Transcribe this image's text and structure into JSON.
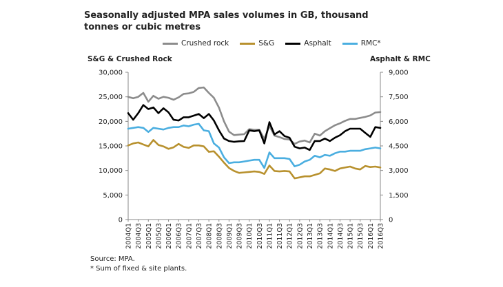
{
  "chart_data": {
    "type": "line",
    "title": "Seasonally adjusted MPA sales volumes in GB, thousand tonnes or cubic metres",
    "ylabel_left": "S&G & Crushed Rock",
    "ylabel_right": "Asphalt & RMC",
    "ylim_left": [
      0,
      30000
    ],
    "ylim_right": [
      0,
      9000
    ],
    "yticks_left": [
      "0",
      "5,000",
      "10,000",
      "15,000",
      "20,000",
      "25,000",
      "30,000"
    ],
    "yticks_right": [
      "0",
      "1,500",
      "3,000",
      "4,500",
      "6,000",
      "7,500",
      "9,000"
    ],
    "x_tick_labels": [
      "2004Q1",
      "2004Q3",
      "2005Q1",
      "2005Q3",
      "2006Q1",
      "2006Q3",
      "2007Q1",
      "2007Q3",
      "2008Q1",
      "2008Q3",
      "2009Q1",
      "2009Q3",
      "2010Q1",
      "2010Q3",
      "2011Q1",
      "2011Q3",
      "2012Q1",
      "2012Q3",
      "2013Q1",
      "2013Q3",
      "2014Q1",
      "2014Q3",
      "2015Q1",
      "2015Q3",
      "2016Q1",
      "2016Q3"
    ],
    "series": [
      {
        "name": "Crushed rock",
        "axis": "left",
        "color": "#8c8c8c",
        "values": [
          25000,
          24700,
          25000,
          25800,
          24000,
          25200,
          24600,
          25000,
          24800,
          24400,
          24900,
          25600,
          25700,
          26000,
          26800,
          26900,
          25800,
          24800,
          22800,
          20000,
          17900,
          17200,
          17300,
          17400,
          18400,
          18300,
          18300,
          16400,
          19100,
          17100,
          16800,
          16400,
          16300,
          15400,
          15900,
          16100,
          15700,
          17500,
          17100,
          18000,
          18600,
          19200,
          19600,
          20100,
          20500,
          20500,
          20700,
          20900,
          21200,
          21800,
          21900
        ]
      },
      {
        "name": "S&G",
        "axis": "left",
        "color": "#b8912e",
        "values": [
          15100,
          15500,
          15700,
          15300,
          14900,
          16200,
          15200,
          14900,
          14400,
          14700,
          15400,
          14800,
          14600,
          15100,
          15100,
          14900,
          13800,
          13900,
          12800,
          11600,
          10500,
          9900,
          9500,
          9600,
          9700,
          9800,
          9700,
          9300,
          11000,
          9900,
          9800,
          9900,
          9800,
          8400,
          8600,
          8800,
          8800,
          9100,
          9400,
          10400,
          10200,
          9900,
          10400,
          10600,
          10800,
          10400,
          10200,
          10900,
          10700,
          10800,
          10600
        ]
      },
      {
        "name": "Asphalt",
        "axis": "right",
        "color": "#000000",
        "values": [
          6500,
          6100,
          6500,
          7000,
          6750,
          6850,
          6500,
          6800,
          6550,
          6100,
          6050,
          6250,
          6250,
          6350,
          6450,
          6200,
          6450,
          6050,
          5450,
          4950,
          4800,
          4750,
          4780,
          4800,
          5450,
          5400,
          5450,
          4650,
          5950,
          5200,
          5400,
          5100,
          5000,
          4450,
          4350,
          4400,
          4250,
          4800,
          4800,
          4950,
          4800,
          5000,
          5150,
          5400,
          5550,
          5550,
          5550,
          5300,
          5050,
          5650,
          5600
        ]
      },
      {
        "name": "RMC*",
        "axis": "right",
        "color": "#4aaee0",
        "values": [
          5550,
          5600,
          5650,
          5600,
          5350,
          5600,
          5550,
          5500,
          5600,
          5650,
          5650,
          5750,
          5700,
          5800,
          5850,
          5450,
          5400,
          4650,
          4400,
          3800,
          3450,
          3500,
          3500,
          3550,
          3600,
          3650,
          3650,
          3150,
          4100,
          3750,
          3750,
          3750,
          3700,
          3250,
          3350,
          3550,
          3650,
          3900,
          3800,
          3950,
          3900,
          4050,
          4150,
          4150,
          4200,
          4200,
          4200,
          4300,
          4350,
          4400,
          4350
        ]
      }
    ]
  },
  "source_lines": [
    "Source: MPA.",
    "* Sum of fixed & site plants."
  ]
}
